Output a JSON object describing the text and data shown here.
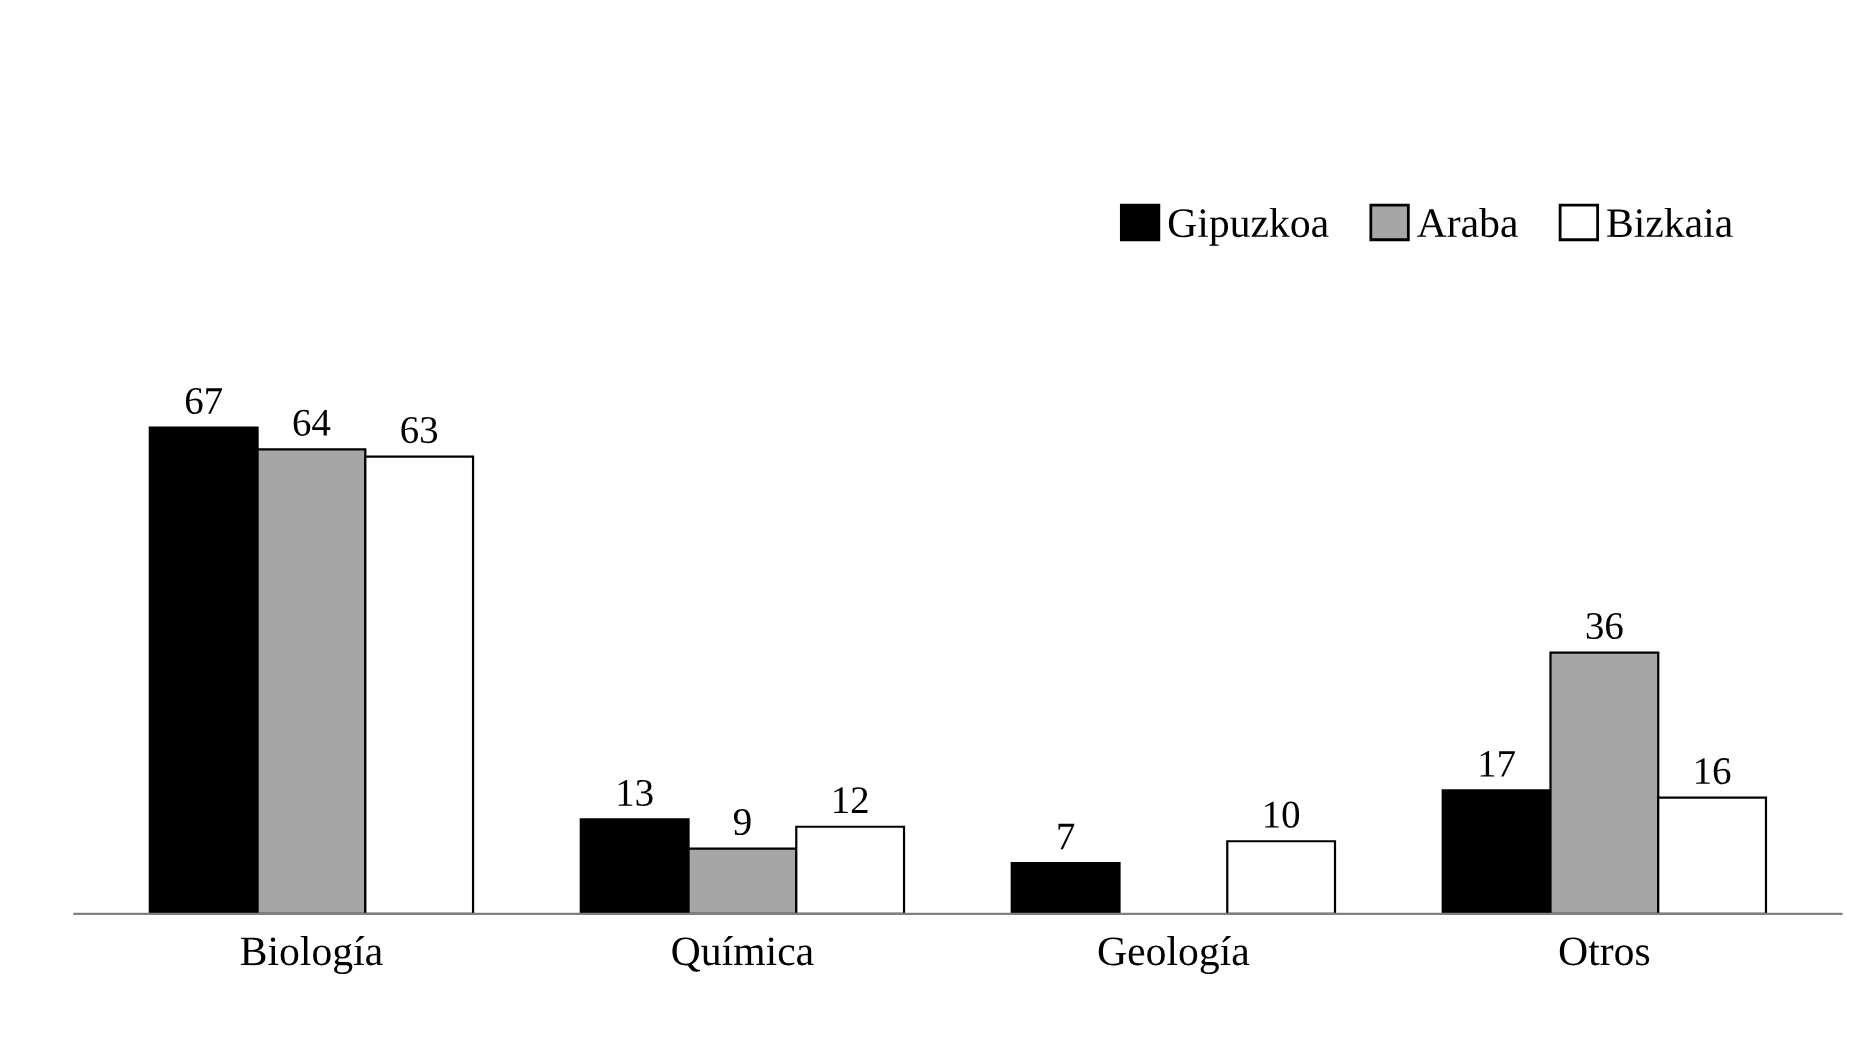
{
  "chart_data": {
    "type": "bar",
    "categories": [
      "Biología",
      "Química",
      "Geología",
      "Otros"
    ],
    "series": [
      {
        "name": "Gipuzkoa",
        "color": "#000000",
        "values": [
          67,
          13,
          7,
          17
        ],
        "value_labels": [
          "67",
          "13",
          "7",
          "17"
        ]
      },
      {
        "name": "Araba",
        "color": "#a6a6a6",
        "values": [
          64,
          9,
          null,
          36
        ],
        "value_labels": [
          "64",
          "9",
          null,
          "36"
        ]
      },
      {
        "name": "Bizkaia",
        "color": "#ffffff",
        "values": [
          63,
          12,
          10,
          16
        ],
        "value_labels": [
          "63",
          "12",
          "10",
          "16"
        ]
      }
    ],
    "legend": "top right",
    "grid": false
  }
}
